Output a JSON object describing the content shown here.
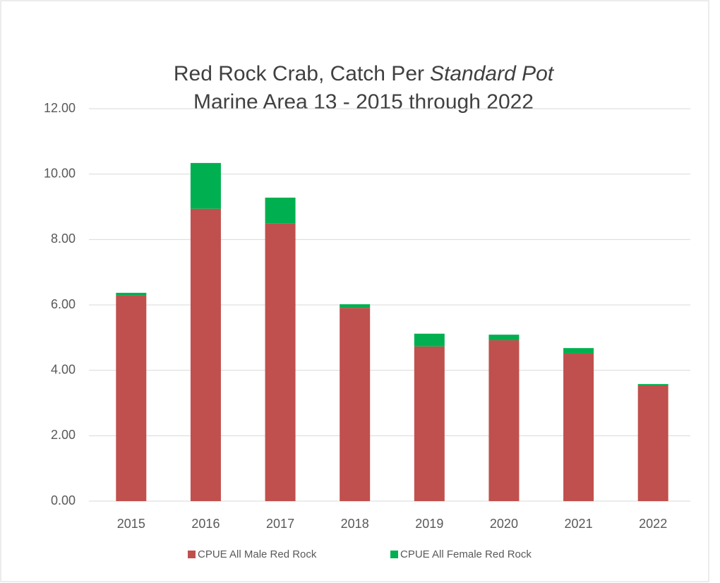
{
  "chart_data": {
    "type": "stacked_bar",
    "title": {
      "text": "Red Rock Crab, Catch Per",
      "emphasis": "Standard Pot"
    },
    "subtitle": "Marine Area 13 - 2015 through 2022",
    "categories": [
      "2015",
      "2016",
      "2017",
      "2018",
      "2019",
      "2020",
      "2021",
      "2022"
    ],
    "series": [
      {
        "name": "CPUE All Male Red Rock",
        "color": "#c0504d",
        "values": [
          6.3,
          8.94,
          8.5,
          5.91,
          4.73,
          4.92,
          4.51,
          3.54
        ]
      },
      {
        "name": "CPUE All Female Red Rock",
        "color": "#00b050",
        "values": [
          0.07,
          1.4,
          0.78,
          0.11,
          0.39,
          0.17,
          0.17,
          0.04
        ]
      }
    ],
    "ylim": [
      0,
      12
    ],
    "yticks": [
      {
        "value": 0,
        "label": "0.00"
      },
      {
        "value": 2,
        "label": "2.00"
      },
      {
        "value": 4,
        "label": "4.00"
      },
      {
        "value": 6,
        "label": "6.00"
      },
      {
        "value": 8,
        "label": "8.00"
      },
      {
        "value": 10,
        "label": "10.00"
      },
      {
        "value": 12,
        "label": "12.00"
      }
    ],
    "grid": true,
    "legend": "bottom"
  }
}
